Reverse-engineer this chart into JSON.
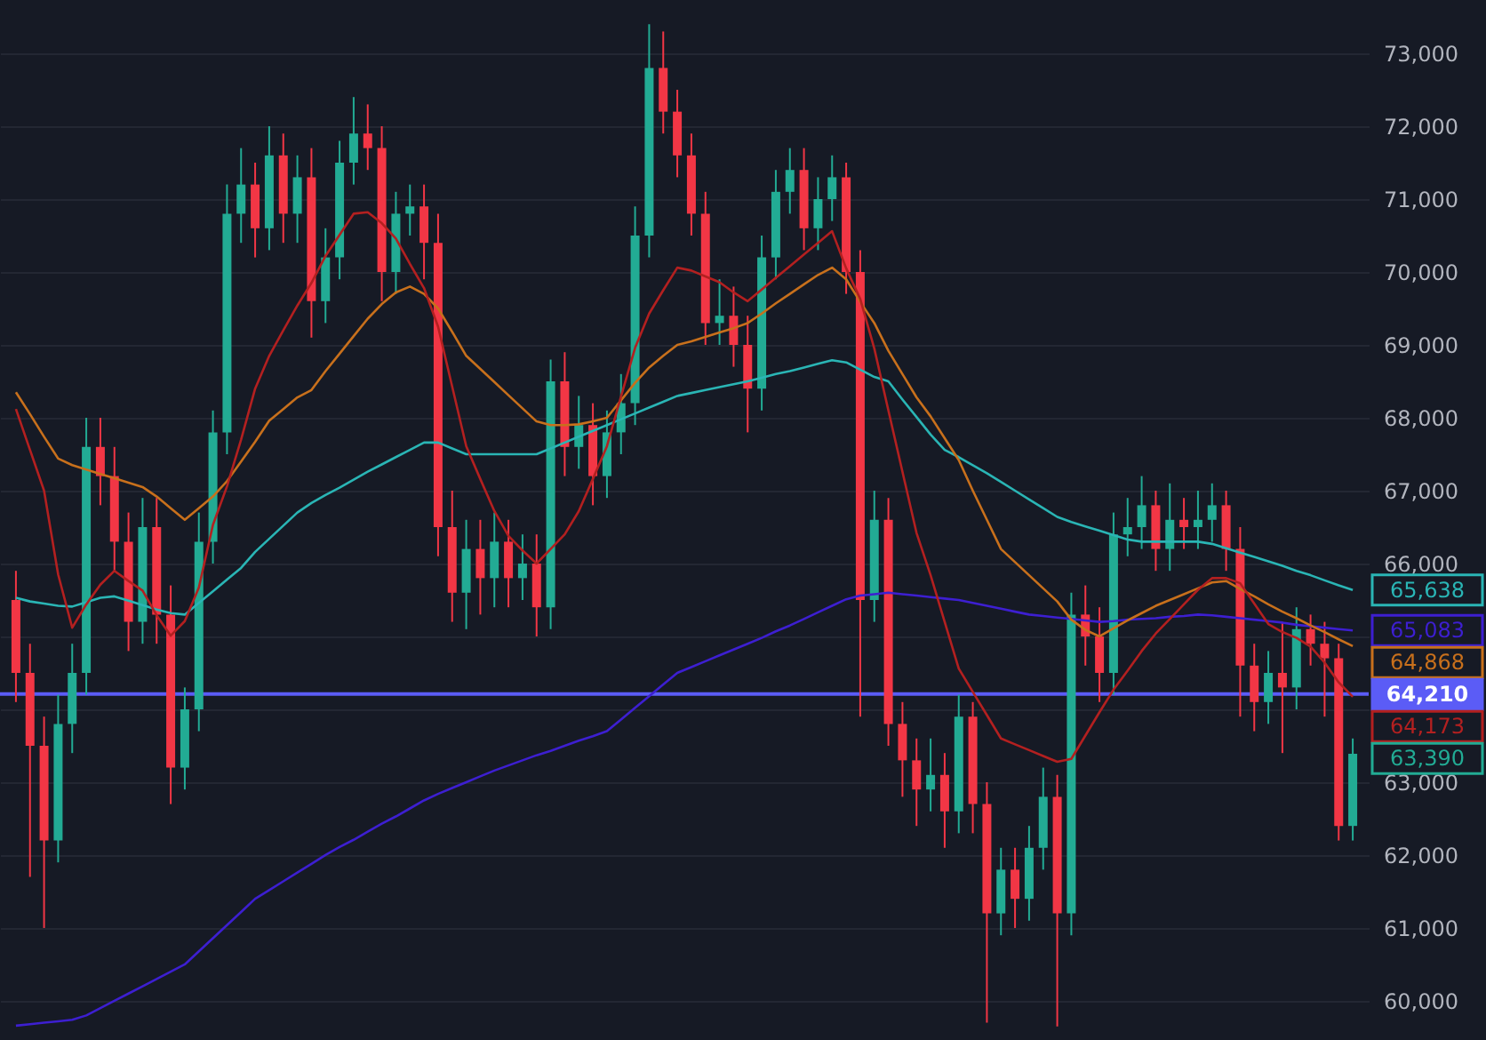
{
  "chart_data": {
    "type": "candlestick",
    "categories": [
      null,
      null,
      null,
      null,
      null,
      null,
      null,
      null,
      null,
      null,
      null,
      null,
      null,
      null,
      null,
      null,
      null,
      null,
      null,
      null,
      null,
      null,
      null,
      null,
      null,
      null,
      null,
      null,
      null,
      null,
      null,
      null,
      null,
      null,
      null,
      null,
      null,
      null,
      null,
      null,
      null,
      null,
      null,
      null,
      null,
      null,
      null,
      null,
      null,
      null,
      null,
      null,
      null,
      null,
      null,
      null,
      null,
      null,
      null,
      null,
      null,
      null,
      null,
      null,
      null,
      null,
      null,
      null,
      null,
      null,
      null,
      null,
      null,
      null,
      null,
      null,
      null,
      null,
      null,
      null,
      null,
      null,
      null,
      null,
      null,
      null,
      null,
      null,
      null,
      null,
      null,
      null,
      null,
      null,
      null,
      null
    ],
    "ohlc": [
      [
        65500,
        65900,
        64100,
        64500
      ],
      [
        64500,
        64900,
        61700,
        63500
      ],
      [
        63500,
        63900,
        61000,
        62200
      ],
      [
        62200,
        64200,
        61900,
        63800
      ],
      [
        63800,
        64900,
        63400,
        64500
      ],
      [
        64500,
        68000,
        64200,
        67600
      ],
      [
        67600,
        68000,
        66800,
        67200
      ],
      [
        67200,
        67600,
        65900,
        66300
      ],
      [
        66300,
        66700,
        64800,
        65200
      ],
      [
        65200,
        66900,
        64900,
        66500
      ],
      [
        66500,
        66900,
        64900,
        65300
      ],
      [
        65300,
        65700,
        62700,
        63200
      ],
      [
        63200,
        64300,
        62900,
        64000
      ],
      [
        64000,
        66700,
        63700,
        66300
      ],
      [
        66300,
        68100,
        66000,
        67800
      ],
      [
        67800,
        71200,
        67500,
        70800
      ],
      [
        70800,
        71700,
        70400,
        71200
      ],
      [
        71200,
        71500,
        70200,
        70600
      ],
      [
        70600,
        72000,
        70300,
        71600
      ],
      [
        71600,
        71900,
        70400,
        70800
      ],
      [
        70800,
        71600,
        70400,
        71300
      ],
      [
        71300,
        71700,
        69100,
        69600
      ],
      [
        69600,
        70600,
        69300,
        70200
      ],
      [
        70200,
        71800,
        69900,
        71500
      ],
      [
        71500,
        72400,
        71200,
        71900
      ],
      [
        71900,
        72300,
        71400,
        71700
      ],
      [
        71700,
        72000,
        69600,
        70000
      ],
      [
        70000,
        71100,
        69700,
        70800
      ],
      [
        70800,
        71200,
        70500,
        70900
      ],
      [
        70900,
        71200,
        69900,
        70400
      ],
      [
        70400,
        70800,
        66100,
        66500
      ],
      [
        66500,
        67000,
        65200,
        65600
      ],
      [
        65600,
        66600,
        65100,
        66200
      ],
      [
        66200,
        66600,
        65300,
        65800
      ],
      [
        65800,
        66700,
        65400,
        66300
      ],
      [
        66300,
        66600,
        65400,
        65800
      ],
      [
        65800,
        66400,
        65500,
        66000
      ],
      [
        66000,
        66400,
        65000,
        65400
      ],
      [
        65400,
        68800,
        65100,
        68500
      ],
      [
        68500,
        68900,
        67200,
        67600
      ],
      [
        67600,
        68300,
        67300,
        67900
      ],
      [
        67900,
        68200,
        66800,
        67200
      ],
      [
        67200,
        68100,
        66900,
        67800
      ],
      [
        67800,
        68600,
        67500,
        68200
      ],
      [
        68200,
        70900,
        67900,
        70500
      ],
      [
        70500,
        73400,
        70200,
        72800
      ],
      [
        72800,
        73300,
        71900,
        72200
      ],
      [
        72200,
        72500,
        71300,
        71600
      ],
      [
        71600,
        71900,
        70500,
        70800
      ],
      [
        70800,
        71100,
        69000,
        69300
      ],
      [
        69300,
        69900,
        69000,
        69400
      ],
      [
        69400,
        69800,
        68700,
        69000
      ],
      [
        69000,
        69400,
        67800,
        68400
      ],
      [
        68400,
        70500,
        68100,
        70200
      ],
      [
        70200,
        71400,
        69900,
        71100
      ],
      [
        71100,
        71700,
        70800,
        71400
      ],
      [
        71400,
        71700,
        70300,
        70600
      ],
      [
        70600,
        71300,
        70300,
        71000
      ],
      [
        71000,
        71600,
        70700,
        71300
      ],
      [
        71300,
        71500,
        69700,
        70000
      ],
      [
        70000,
        70300,
        63900,
        65500
      ],
      [
        65500,
        67000,
        65200,
        66600
      ],
      [
        66600,
        66900,
        63500,
        63800
      ],
      [
        63800,
        64100,
        62800,
        63300
      ],
      [
        63300,
        63600,
        62400,
        62900
      ],
      [
        62900,
        63600,
        62600,
        63100
      ],
      [
        63100,
        63400,
        62100,
        62600
      ],
      [
        62600,
        64200,
        62300,
        63900
      ],
      [
        63900,
        64100,
        62300,
        62700
      ],
      [
        62700,
        63000,
        59700,
        61200
      ],
      [
        61200,
        62100,
        60900,
        61800
      ],
      [
        61800,
        62100,
        61000,
        61400
      ],
      [
        61400,
        62400,
        61100,
        62100
      ],
      [
        62100,
        63200,
        61800,
        62800
      ],
      [
        62800,
        63100,
        59650,
        61200
      ],
      [
        61200,
        65600,
        60900,
        65300
      ],
      [
        65300,
        65700,
        64600,
        65000
      ],
      [
        65000,
        65400,
        64100,
        64500
      ],
      [
        64500,
        66700,
        64200,
        66400
      ],
      [
        66400,
        66900,
        66100,
        66500
      ],
      [
        66500,
        67200,
        66200,
        66800
      ],
      [
        66800,
        67000,
        65900,
        66200
      ],
      [
        66200,
        67100,
        65900,
        66600
      ],
      [
        66600,
        66900,
        66200,
        66500
      ],
      [
        66500,
        67000,
        66200,
        66600
      ],
      [
        66600,
        67100,
        66300,
        66800
      ],
      [
        66800,
        67000,
        65900,
        66200
      ],
      [
        66200,
        66500,
        63900,
        64600
      ],
      [
        64600,
        64900,
        63700,
        64100
      ],
      [
        64100,
        64800,
        63800,
        64500
      ],
      [
        64500,
        65200,
        63400,
        64300
      ],
      [
        64300,
        65400,
        64000,
        65100
      ],
      [
        65100,
        65300,
        64600,
        64900
      ],
      [
        64900,
        65200,
        63900,
        64700
      ],
      [
        64700,
        64900,
        62200,
        62400
      ],
      [
        62400,
        63600,
        62200,
        63390
      ]
    ],
    "colors": [
      "#f23645",
      "#f23645",
      "#f23645",
      "#22ab94",
      "#22ab94",
      "#22ab94",
      "#f23645",
      "#f23645",
      "#f23645",
      "#22ab94",
      "#f23645",
      "#f23645",
      "#22ab94",
      "#22ab94",
      "#22ab94",
      "#22ab94",
      "#22ab94",
      "#f23645",
      "#22ab94",
      "#f23645",
      "#22ab94",
      "#f23645",
      "#22ab94",
      "#22ab94",
      "#22ab94",
      "#f23645",
      "#f23645",
      "#22ab94",
      "#22ab94",
      "#f23645",
      "#f23645",
      "#f23645",
      "#22ab94",
      "#f23645",
      "#22ab94",
      "#f23645",
      "#22ab94",
      "#f23645",
      "#22ab94",
      "#f23645",
      "#22ab94",
      "#f23645",
      "#22ab94",
      "#22ab94",
      "#22ab94",
      "#22ab94",
      "#f23645",
      "#f23645",
      "#f23645",
      "#f23645",
      "#22ab94",
      "#f23645",
      "#f23645",
      "#22ab94",
      "#22ab94",
      "#22ab94",
      "#f23645",
      "#22ab94",
      "#22ab94",
      "#f23645",
      "#f23645",
      "#22ab94",
      "#f23645",
      "#f23645",
      "#f23645",
      "#22ab94",
      "#f23645",
      "#22ab94",
      "#f23645",
      "#f23645",
      "#22ab94",
      "#f23645",
      "#22ab94",
      "#22ab94",
      "#f23645",
      "#22ab94",
      "#f23645",
      "#f23645",
      "#22ab94",
      "#22ab94",
      "#22ab94",
      "#f23645",
      "#22ab94",
      "#f23645",
      "#22ab94",
      "#22ab94",
      "#f23645",
      "#f23645",
      "#f23645",
      "#22ab94",
      "#f23645",
      "#22ab94",
      "#f23645",
      "#f23645",
      "#f23645",
      "#22ab94"
    ],
    "series": [
      {
        "type": "line",
        "color": "#2ab5b5",
        "values": [
          65530,
          65480,
          65450,
          65420,
          65410,
          65470,
          65530,
          65550,
          65490,
          65430,
          65370,
          65320,
          65300,
          65460,
          65620,
          65780,
          65940,
          66160,
          66340,
          66520,
          66700,
          66830,
          66940,
          67040,
          67150,
          67260,
          67360,
          67460,
          67560,
          67660,
          67660,
          67580,
          67500,
          67500,
          67500,
          67500,
          67500,
          67500,
          67580,
          67660,
          67740,
          67820,
          67900,
          67980,
          68060,
          68140,
          68220,
          68300,
          68340,
          68380,
          68420,
          68460,
          68500,
          68550,
          68600,
          68640,
          68690,
          68740,
          68790,
          68760,
          68660,
          68560,
          68500,
          68250,
          68010,
          67770,
          67560,
          67460,
          67350,
          67240,
          67120,
          67000,
          66880,
          66760,
          66640,
          66570,
          66510,
          66450,
          66390,
          66330,
          66300,
          66300,
          66300,
          66300,
          66300,
          66270,
          66210,
          66150,
          66090,
          66030,
          65970,
          65900,
          65840,
          65770,
          65700,
          65638
        ]
      },
      {
        "type": "line",
        "color": "#3d1fd1",
        "values": [
          59660,
          59680,
          59700,
          59720,
          59740,
          59800,
          59900,
          60000,
          60100,
          60200,
          60300,
          60400,
          60500,
          60680,
          60860,
          61040,
          61220,
          61400,
          61520,
          61640,
          61760,
          61880,
          62000,
          62110,
          62210,
          62320,
          62430,
          62530,
          62640,
          62750,
          62840,
          62920,
          63000,
          63080,
          63160,
          63230,
          63300,
          63370,
          63430,
          63500,
          63570,
          63630,
          63700,
          63860,
          64020,
          64180,
          64340,
          64500,
          64580,
          64660,
          64740,
          64820,
          64900,
          64980,
          65070,
          65150,
          65240,
          65330,
          65420,
          65510,
          65560,
          65580,
          65600,
          65580,
          65560,
          65540,
          65520,
          65500,
          65460,
          65420,
          65380,
          65340,
          65300,
          65280,
          65260,
          65240,
          65220,
          65200,
          65210,
          65230,
          65240,
          65250,
          65270,
          65280,
          65300,
          65290,
          65270,
          65250,
          65230,
          65210,
          65190,
          65160,
          65140,
          65120,
          65100,
          65083
        ]
      },
      {
        "type": "line",
        "color": "#c8701c",
        "values": [
          68350,
          68050,
          67740,
          67440,
          67350,
          67290,
          67230,
          67170,
          67110,
          67050,
          66920,
          66760,
          66600,
          66760,
          66920,
          67130,
          67400,
          67670,
          67960,
          68120,
          68280,
          68380,
          68640,
          68880,
          69120,
          69360,
          69560,
          69720,
          69800,
          69700,
          69500,
          69180,
          68850,
          68670,
          68490,
          68310,
          68130,
          67950,
          67900,
          67900,
          67910,
          67950,
          68000,
          68240,
          68480,
          68690,
          68850,
          69000,
          69050,
          69110,
          69170,
          69230,
          69300,
          69430,
          69570,
          69700,
          69830,
          69960,
          70060,
          69900,
          69590,
          69300,
          68920,
          68600,
          68280,
          68020,
          67720,
          67420,
          67000,
          66600,
          66200,
          66020,
          65840,
          65660,
          65480,
          65230,
          65090,
          65000,
          65110,
          65220,
          65320,
          65420,
          65500,
          65580,
          65660,
          65740,
          65760,
          65650,
          65550,
          65440,
          65340,
          65250,
          65150,
          65060,
          64960,
          64868
        ]
      },
      {
        "type": "line",
        "color": "#b32020",
        "values": [
          68120,
          67560,
          67000,
          65850,
          65120,
          65440,
          65710,
          65900,
          65760,
          65630,
          65290,
          65010,
          65210,
          65670,
          66530,
          67060,
          67700,
          68400,
          68850,
          69200,
          69540,
          69850,
          70220,
          70510,
          70800,
          70820,
          70670,
          70460,
          70110,
          69780,
          69250,
          68430,
          67610,
          67160,
          66720,
          66380,
          66180,
          66000,
          66200,
          66400,
          66720,
          67160,
          67610,
          68290,
          68960,
          69430,
          69750,
          70060,
          70020,
          69940,
          69860,
          69720,
          69600,
          69760,
          69920,
          70080,
          70240,
          70400,
          70560,
          70050,
          69630,
          68950,
          68100,
          67260,
          66420,
          65840,
          65200,
          64560,
          64240,
          63920,
          63600,
          63520,
          63440,
          63360,
          63280,
          63320,
          63640,
          63960,
          64270,
          64530,
          64800,
          65040,
          65240,
          65440,
          65640,
          65800,
          65800,
          65730,
          65450,
          65170,
          65060,
          64980,
          64860,
          64640,
          64370,
          64173
        ]
      }
    ],
    "ref_lines": [
      {
        "axis": "y",
        "value": 64210,
        "label": "64,210",
        "color": "#5b5cf6"
      }
    ],
    "annotations": [
      "65,638",
      "65,083",
      "64,868",
      "64,173",
      "63,390"
    ],
    "ylim": [
      59463,
      73732
    ],
    "yticks": [
      {
        "value": 60000,
        "label": "60,000"
      },
      {
        "value": 61000,
        "label": "61,000"
      },
      {
        "value": 62000,
        "label": "62,000"
      },
      {
        "value": 63000,
        "label": "63,000"
      },
      {
        "value": 64000,
        "label": null
      },
      {
        "value": 65000,
        "label": null
      },
      {
        "value": 66000,
        "label": "66,000"
      },
      {
        "value": 67000,
        "label": "67,000"
      },
      {
        "value": 68000,
        "label": "68,000"
      },
      {
        "value": 69000,
        "label": "69,000"
      },
      {
        "value": 70000,
        "label": "70,000"
      },
      {
        "value": 71000,
        "label": "71,000"
      },
      {
        "value": 72000,
        "label": "72,000"
      },
      {
        "value": 73000,
        "label": "73,000"
      }
    ],
    "grid": "y",
    "tick_labels": "y"
  }
}
